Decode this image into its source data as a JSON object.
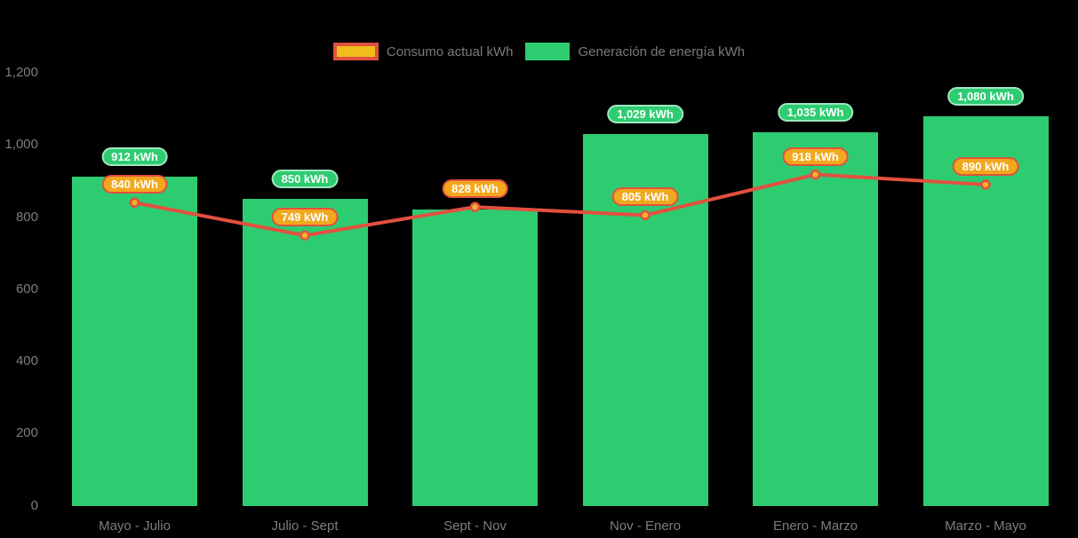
{
  "colors": {
    "background": "#000000",
    "bar_fill": "#2ecc71",
    "line_stroke": "#e2503f",
    "point_fill": "#f0b429",
    "green_pill_fill": "#2ecc71",
    "green_pill_border": "#9fe7bf",
    "orange_pill_fill": "#f2a81d",
    "orange_pill_border": "#e2503f",
    "axis_text": "#7e7e7e",
    "legend_text": "#7a7a7a"
  },
  "legend": {
    "items": [
      {
        "label": "Consumo actual kWh",
        "swatch": "line"
      },
      {
        "label": "Generación de energía kWh",
        "swatch": "bar"
      }
    ]
  },
  "chart_data": {
    "type": "bar",
    "title": "",
    "xlabel": "",
    "ylabel": "",
    "categories": [
      "Mayo - Julio",
      "Julio - Sept",
      "Sept - Nov",
      "Nov - Enero",
      "Enero - Marzo",
      "Marzo - Mayo"
    ],
    "series": [
      {
        "name": "Generación de energía kWh",
        "type": "bar",
        "color": "#2ecc71",
        "values": [
          912,
          850,
          820,
          1029,
          1035,
          1080
        ],
        "labels": [
          "912 kWh",
          "850 kWh",
          null,
          "1,029 kWh",
          "1,035 kWh",
          "1,080 kWh"
        ]
      },
      {
        "name": "Consumo actual kWh",
        "type": "line",
        "color": "#e2503f",
        "point_color": "#f0b429",
        "values": [
          840,
          749,
          828,
          805,
          918,
          890
        ],
        "labels": [
          "840 kWh",
          "749 kWh",
          "828 kWh",
          "805 kWh",
          "918 kWh",
          "890 kWh"
        ]
      }
    ],
    "ylim": [
      0,
      1200
    ],
    "yticks": [
      {
        "value": 1200,
        "label": "1,200"
      },
      {
        "value": 1000,
        "label": "1,000"
      },
      {
        "value": 800,
        "label": "800"
      },
      {
        "value": 600,
        "label": "600"
      },
      {
        "value": 400,
        "label": "400"
      },
      {
        "value": 200,
        "label": "200"
      },
      {
        "value": 0,
        "label": "0"
      }
    ],
    "grid": false,
    "legend_position": "top"
  }
}
